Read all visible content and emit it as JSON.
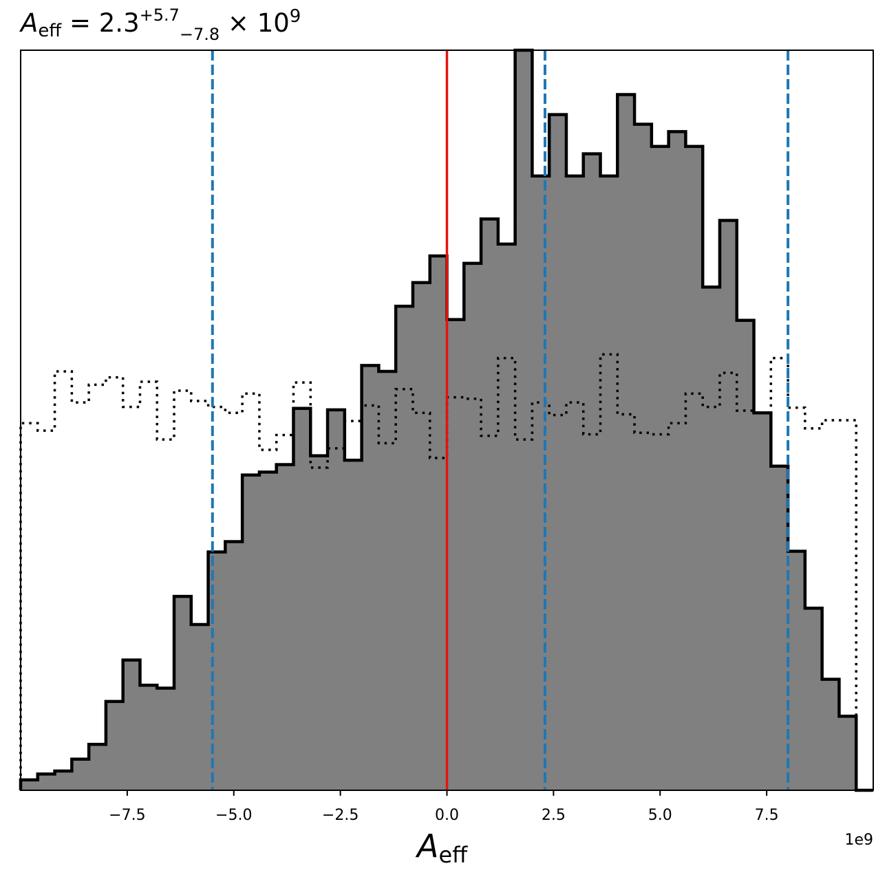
{
  "chart_data": {
    "type": "histogram",
    "title": {
      "symbol": "A",
      "subscript": "eff",
      "equals": " = ",
      "value": "2.3",
      "upper": "+5.7",
      "lower": "−7.8",
      "times": " × 10",
      "exponent": "9"
    },
    "xlabel": {
      "symbol": "A",
      "subscript": "eff"
    },
    "offset_text": "1e9",
    "x_unit_scale": 1000000000.0,
    "xlim": [
      -10.0,
      10.0
    ],
    "ylim_relative": [
      0,
      1
    ],
    "grid": false,
    "legend": "none",
    "x_ticks": [
      -7.5,
      -5.0,
      -2.5,
      0.0,
      2.5,
      5.0,
      7.5
    ],
    "x_tick_labels": [
      "−7.5",
      "−5.0",
      "−2.5",
      "0.0",
      "2.5",
      "5.0",
      "7.5"
    ],
    "bin_edges": [
      -10.0,
      -9.6,
      -9.2,
      -8.8,
      -8.4,
      -8.0,
      -7.6,
      -7.2,
      -6.8,
      -6.4,
      -6.0,
      -5.6,
      -5.2,
      -4.8,
      -4.4,
      -4.0,
      -3.6,
      -3.2,
      -2.8,
      -2.4,
      -2.0,
      -1.6,
      -1.2,
      -0.8,
      -0.4,
      0.0,
      0.4,
      0.8,
      1.2,
      1.6,
      2.0,
      2.4,
      2.8,
      3.2,
      3.6,
      4.0,
      4.4,
      4.8,
      5.2,
      5.6,
      6.0,
      6.4,
      6.8,
      7.2,
      7.6,
      8.0,
      8.4,
      8.8,
      9.2,
      9.6,
      10.0
    ],
    "series": [
      {
        "name": "posterior",
        "style": "filled-step",
        "color": "#808080",
        "edge_color": "#000000",
        "values": [
          0.014,
          0.022,
          0.026,
          0.042,
          0.062,
          0.12,
          0.176,
          0.142,
          0.138,
          0.262,
          0.224,
          0.322,
          0.336,
          0.426,
          0.43,
          0.44,
          0.516,
          0.452,
          0.514,
          0.446,
          0.574,
          0.566,
          0.654,
          0.686,
          0.722,
          0.636,
          0.712,
          0.772,
          0.738,
          1.0,
          0.83,
          0.913,
          0.83,
          0.86,
          0.83,
          0.94,
          0.9,
          0.87,
          0.89,
          0.87,
          0.68,
          0.77,
          0.635,
          0.51,
          0.438,
          0.323,
          0.246,
          0.15,
          0.1,
          0.0
        ]
      },
      {
        "name": "prior",
        "style": "dotted-step",
        "color": "#000000",
        "values": [
          0.496,
          0.486,
          0.566,
          0.524,
          0.548,
          0.558,
          0.518,
          0.552,
          0.474,
          0.54,
          0.526,
          0.518,
          0.51,
          0.536,
          0.46,
          0.48,
          0.551,
          0.436,
          0.462,
          0.499,
          0.52,
          0.469,
          0.542,
          0.51,
          0.449,
          0.531,
          0.529,
          0.479,
          0.584,
          0.474,
          0.524,
          0.507,
          0.524,
          0.481,
          0.589,
          0.508,
          0.483,
          0.481,
          0.496,
          0.536,
          0.518,
          0.564,
          0.513,
          0.51,
          0.584,
          0.517,
          0.489,
          0.5,
          0.5,
          0.0
        ]
      }
    ],
    "vertical_lines": [
      {
        "name": "truth",
        "x": 0.0,
        "color": "#e8120d",
        "style": "solid"
      },
      {
        "name": "lower-bound",
        "x": -5.5,
        "color": "#1f77b4",
        "style": "dashed"
      },
      {
        "name": "median",
        "x": 2.3,
        "color": "#1f77b4",
        "style": "dashed"
      },
      {
        "name": "upper-bound",
        "x": 8.0,
        "color": "#1f77b4",
        "style": "dashed"
      }
    ]
  }
}
